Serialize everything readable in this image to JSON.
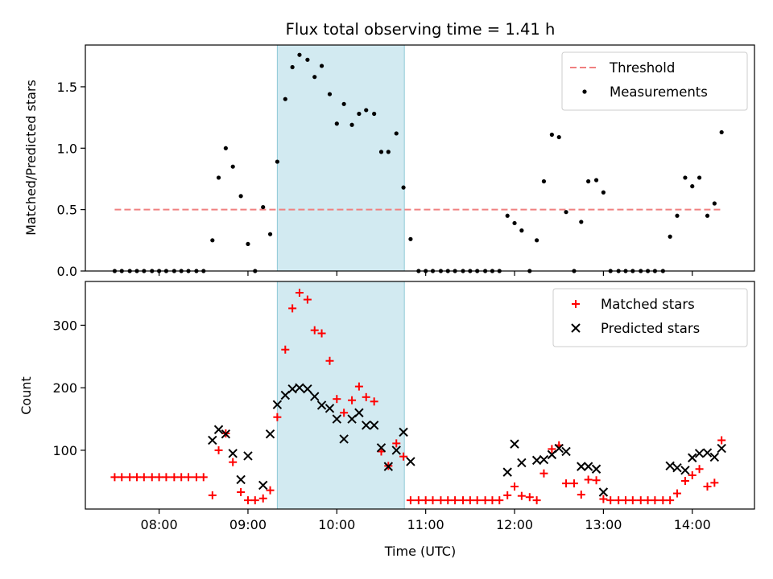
{
  "chart_data": [
    {
      "type": "scatter",
      "title": "Flux total observing time = 1.41 h",
      "xlabel": "",
      "ylabel": "Matched/Predicted stars",
      "ylim": [
        0,
        1.84
      ],
      "yticks": [
        "0.0",
        "0.5",
        "1.0",
        "1.5"
      ],
      "xlim": [
        7.17,
        14.7
      ],
      "highlight_span": [
        9.33,
        10.76
      ],
      "highlight_color": "#add8e6",
      "legend_position": "top-right",
      "threshold": {
        "name": "Threshold",
        "value": 0.5,
        "x_range": [
          7.5,
          14.33
        ],
        "color": "#f08080"
      },
      "series": [
        {
          "name": "Measurements",
          "color": "#000000",
          "marker": "dot",
          "x": [
            7.5,
            7.58,
            7.67,
            7.75,
            7.83,
            7.92,
            8.0,
            8.08,
            8.17,
            8.25,
            8.33,
            8.42,
            8.5,
            8.6,
            8.67,
            8.75,
            8.83,
            8.92,
            9.0,
            9.08,
            9.17,
            9.25,
            9.33,
            9.42,
            9.5,
            9.58,
            9.67,
            9.75,
            9.83,
            9.92,
            10.0,
            10.08,
            10.17,
            10.25,
            10.33,
            10.42,
            10.5,
            10.58,
            10.67,
            10.75,
            10.83,
            10.92,
            11.0,
            11.08,
            11.17,
            11.25,
            11.33,
            11.42,
            11.5,
            11.58,
            11.67,
            11.75,
            11.83,
            11.92,
            12.0,
            12.08,
            12.17,
            12.25,
            12.33,
            12.42,
            12.5,
            12.58,
            12.67,
            12.75,
            12.83,
            12.92,
            13.0,
            13.08,
            13.17,
            13.25,
            13.33,
            13.42,
            13.5,
            13.58,
            13.67,
            13.75,
            13.83,
            13.92,
            14.0,
            14.08,
            14.17,
            14.25,
            14.33
          ],
          "y": [
            0,
            0,
            0,
            0,
            0,
            0,
            0,
            0,
            0,
            0,
            0,
            0,
            0,
            0.25,
            0.76,
            1.0,
            0.85,
            0.61,
            0.22,
            0,
            0.52,
            0.3,
            0.89,
            1.4,
            1.66,
            1.76,
            1.72,
            1.58,
            1.67,
            1.44,
            1.2,
            1.36,
            1.19,
            1.28,
            1.31,
            1.28,
            0.97,
            0.97,
            1.12,
            0.68,
            0.26,
            0,
            0,
            0,
            0,
            0,
            0,
            0,
            0,
            0,
            0,
            0,
            0,
            0.45,
            0.39,
            0.33,
            0,
            0.25,
            0.73,
            1.11,
            1.09,
            0.48,
            0,
            0.4,
            0.73,
            0.74,
            0.64,
            0,
            0,
            0,
            0,
            0,
            0,
            0,
            0,
            0.28,
            0.45,
            0.76,
            0.69,
            0.76,
            0.45,
            0.55,
            1.13
          ]
        }
      ]
    },
    {
      "type": "scatter",
      "title": "",
      "xlabel": "Time (UTC)",
      "ylabel": "Count",
      "ylim": [
        6,
        370
      ],
      "yticks": [
        "100",
        "200",
        "300"
      ],
      "xlim": [
        7.17,
        14.7
      ],
      "xticks": [
        "08:00",
        "09:00",
        "10:00",
        "11:00",
        "12:00",
        "13:00",
        "14:00"
      ],
      "highlight_span": [
        9.33,
        10.76
      ],
      "highlight_color": "#add8e6",
      "legend_position": "top-right",
      "series": [
        {
          "name": "Matched stars",
          "color": "#ff0000",
          "marker": "plus",
          "x": [
            7.5,
            7.58,
            7.67,
            7.75,
            7.83,
            7.92,
            8.0,
            8.08,
            8.17,
            8.25,
            8.33,
            8.42,
            8.5,
            8.6,
            8.67,
            8.75,
            8.83,
            8.92,
            9.0,
            9.08,
            9.17,
            9.25,
            9.33,
            9.42,
            9.5,
            9.58,
            9.67,
            9.75,
            9.83,
            9.92,
            10.0,
            10.08,
            10.17,
            10.25,
            10.33,
            10.42,
            10.5,
            10.58,
            10.67,
            10.75,
            10.83,
            10.92,
            11.0,
            11.08,
            11.17,
            11.25,
            11.33,
            11.42,
            11.5,
            11.58,
            11.67,
            11.75,
            11.83,
            11.92,
            12.0,
            12.08,
            12.17,
            12.25,
            12.33,
            12.42,
            12.5,
            12.58,
            12.67,
            12.75,
            12.83,
            12.92,
            13.0,
            13.08,
            13.17,
            13.25,
            13.33,
            13.42,
            13.5,
            13.58,
            13.67,
            13.75,
            13.83,
            13.92,
            14.0,
            14.08,
            14.17,
            14.25,
            14.33
          ],
          "y": [
            57,
            57,
            57,
            57,
            57,
            57,
            57,
            57,
            57,
            57,
            57,
            57,
            57,
            28,
            100,
            127,
            81,
            33,
            20,
            20,
            23,
            36,
            153,
            261,
            327,
            352,
            341,
            292,
            287,
            243,
            182,
            160,
            180,
            202,
            185,
            178,
            98,
            75,
            111,
            90,
            20,
            20,
            20,
            20,
            20,
            20,
            20,
            20,
            20,
            20,
            20,
            20,
            20,
            28,
            42,
            27,
            25,
            20,
            63,
            102,
            108,
            47,
            47,
            29,
            53,
            52,
            22,
            20,
            20,
            20,
            20,
            20,
            20,
            20,
            20,
            20,
            31,
            51,
            60,
            70,
            42,
            48,
            116
          ]
        },
        {
          "name": "Predicted stars",
          "color": "#000000",
          "marker": "cross",
          "x": [
            8.6,
            8.67,
            8.75,
            8.83,
            8.92,
            9.0,
            9.17,
            9.25,
            9.33,
            9.42,
            9.5,
            9.58,
            9.67,
            9.75,
            9.83,
            9.92,
            10.0,
            10.08,
            10.17,
            10.25,
            10.33,
            10.42,
            10.5,
            10.58,
            10.67,
            10.75,
            10.83,
            11.92,
            12.0,
            12.08,
            12.25,
            12.33,
            12.42,
            12.5,
            12.58,
            12.75,
            12.83,
            12.92,
            13.0,
            13.75,
            13.83,
            13.92,
            14.0,
            14.08,
            14.17,
            14.25,
            14.33
          ],
          "y": [
            116,
            133,
            126,
            95,
            53,
            91,
            44,
            126,
            173,
            188,
            198,
            200,
            198,
            186,
            172,
            167,
            150,
            118,
            150,
            160,
            140,
            140,
            104,
            74,
            100,
            129,
            82,
            65,
            110,
            80,
            84,
            85,
            93,
            103,
            98,
            74,
            74,
            70,
            33,
            75,
            72,
            68,
            88,
            95,
            96,
            89,
            103
          ]
        }
      ]
    }
  ]
}
